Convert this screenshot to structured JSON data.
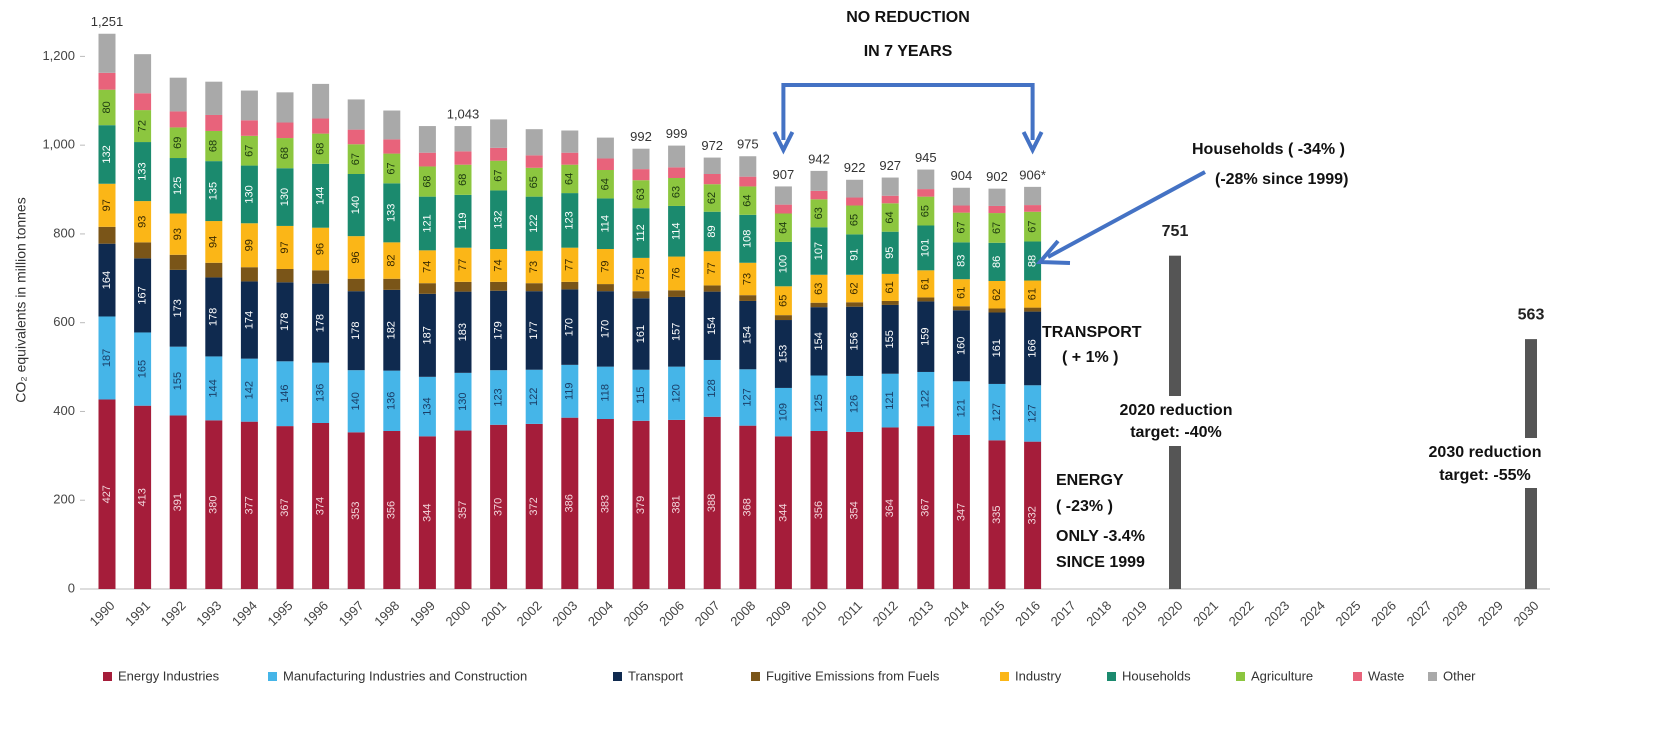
{
  "chart_data": {
    "type": "stacked_bar",
    "y_label": "CO₂ equivalents in million tonnes",
    "categories": [
      "1990",
      "1991",
      "1992",
      "1993",
      "1994",
      "1995",
      "1996",
      "1997",
      "1998",
      "1999",
      "2000",
      "2001",
      "2002",
      "2003",
      "2004",
      "2005",
      "2006",
      "2007",
      "2008",
      "2009",
      "2010",
      "2011",
      "2012",
      "2013",
      "2014",
      "2015",
      "2016",
      "2017",
      "2018",
      "2019",
      "2020",
      "2021",
      "2022",
      "2023",
      "2024",
      "2025",
      "2026",
      "2027",
      "2028",
      "2029",
      "2030"
    ],
    "ylim": [
      0,
      1300
    ],
    "yticks": [
      0,
      200,
      400,
      600,
      800,
      {
        "value": 1000,
        "label": "1,000"
      },
      {
        "value": 1200,
        "label": "1,200"
      }
    ],
    "series": [
      {
        "name": "Energy Industries",
        "color": "#a51d3a",
        "label_color": "#f2d6dc",
        "show_labels": true,
        "values": [
          427,
          413,
          391,
          380,
          377,
          367,
          374,
          353,
          356,
          344,
          357,
          370,
          372,
          386,
          383,
          379,
          381,
          388,
          368,
          344,
          356,
          354,
          364,
          367,
          347,
          335,
          332,
          null,
          null,
          null,
          null,
          null,
          null,
          null,
          null,
          null,
          null,
          null,
          null,
          null,
          null
        ]
      },
      {
        "name": "Manufacturing Industries and Construction",
        "color": "#45b5e8",
        "label_color": "#1a3d66",
        "show_labels": true,
        "values": [
          187,
          165,
          155,
          144,
          142,
          146,
          136,
          140,
          136,
          134,
          130,
          123,
          122,
          119,
          118,
          115,
          120,
          128,
          127,
          109,
          125,
          126,
          121,
          122,
          121,
          127,
          127,
          null,
          null,
          null,
          null,
          null,
          null,
          null,
          null,
          null,
          null,
          null,
          null,
          null,
          null
        ]
      },
      {
        "name": "Transport",
        "color": "#0f2a4f",
        "label_color": "#ffffff",
        "show_labels": true,
        "values": [
          164,
          167,
          173,
          178,
          174,
          178,
          178,
          178,
          182,
          187,
          183,
          179,
          177,
          170,
          170,
          161,
          157,
          154,
          154,
          153,
          154,
          156,
          155,
          159,
          160,
          161,
          166,
          null,
          null,
          null,
          null,
          null,
          null,
          null,
          null,
          null,
          null,
          null,
          null,
          null,
          null
        ]
      },
      {
        "name": "Fugitive Emissions from Fuels",
        "color": "#7a5518",
        "label_color": "#ffffff",
        "show_labels": false,
        "values": [
          38,
          36,
          34,
          33,
          32,
          30,
          30,
          28,
          25,
          24,
          22,
          20,
          18,
          17,
          16,
          16,
          15,
          14,
          13,
          11,
          10,
          10,
          9,
          9,
          9,
          9,
          9,
          null,
          null,
          null,
          null,
          null,
          null,
          null,
          null,
          null,
          null,
          null,
          null,
          null,
          null
        ]
      },
      {
        "name": "Industry",
        "color": "#fbb617",
        "label_color": "#3a2a00",
        "show_labels": true,
        "values": [
          97,
          93,
          93,
          94,
          99,
          97,
          96,
          96,
          82,
          74,
          77,
          74,
          73,
          77,
          79,
          75,
          76,
          77,
          73,
          65,
          63,
          62,
          61,
          61,
          61,
          62,
          61,
          null,
          null,
          null,
          null,
          null,
          null,
          null,
          null,
          null,
          null,
          null,
          null,
          null,
          null
        ]
      },
      {
        "name": "Households",
        "color": "#1b8a6e",
        "label_color": "#ffffff",
        "show_labels": true,
        "values": [
          132,
          133,
          125,
          135,
          130,
          130,
          144,
          140,
          133,
          121,
          119,
          132,
          122,
          123,
          114,
          112,
          114,
          89,
          108,
          100,
          107,
          91,
          95,
          101,
          83,
          86,
          88,
          null,
          null,
          null,
          null,
          null,
          null,
          null,
          null,
          null,
          null,
          null,
          null,
          null,
          null
        ]
      },
      {
        "name": "Agriculture",
        "color": "#8cc63f",
        "label_color": "#1e3a10",
        "show_labels": true,
        "values": [
          80,
          72,
          69,
          68,
          67,
          68,
          68,
          67,
          67,
          68,
          68,
          67,
          65,
          64,
          64,
          63,
          63,
          62,
          64,
          64,
          63,
          65,
          64,
          65,
          67,
          67,
          67,
          null,
          null,
          null,
          null,
          null,
          null,
          null,
          null,
          null,
          null,
          null,
          null,
          null,
          null
        ]
      },
      {
        "name": "Waste",
        "color": "#e8637b",
        "label_color": "#ffffff",
        "show_labels": false,
        "values": [
          38,
          38,
          36,
          36,
          35,
          35,
          34,
          33,
          32,
          31,
          30,
          29,
          28,
          27,
          26,
          25,
          24,
          23,
          22,
          20,
          19,
          18,
          17,
          17,
          16,
          16,
          15,
          null,
          null,
          null,
          null,
          null,
          null,
          null,
          null,
          null,
          null,
          null,
          null,
          null,
          null
        ]
      },
      {
        "name": "Other",
        "color": "#a9a9a9",
        "label_color": "#ffffff",
        "show_labels": false,
        "values": [
          88,
          88,
          76,
          75,
          67,
          68,
          78,
          68,
          65,
          60,
          57,
          64,
          59,
          50,
          47,
          46,
          49,
          37,
          46,
          41,
          45,
          40,
          41,
          44,
          40,
          39,
          41,
          null,
          null,
          null,
          null,
          null,
          null,
          null,
          null,
          null,
          null,
          null,
          null,
          null,
          null
        ]
      }
    ],
    "totals": {
      "values": [
        1251,
        null,
        null,
        null,
        null,
        null,
        null,
        null,
        null,
        null,
        1043,
        null,
        null,
        null,
        null,
        992,
        999,
        972,
        975,
        907,
        942,
        922,
        927,
        945,
        904,
        902,
        906,
        null,
        null,
        null,
        null,
        null,
        null,
        null,
        null,
        null,
        null,
        null,
        null,
        null,
        null
      ],
      "value_labels": [
        "1,251",
        null,
        null,
        null,
        null,
        null,
        null,
        null,
        null,
        null,
        "1,043",
        null,
        null,
        null,
        null,
        "992",
        "999",
        "972",
        "975",
        "907",
        "942",
        "922",
        "927",
        "945",
        "904",
        "902",
        "906*",
        null,
        null,
        null,
        null,
        null,
        null,
        null,
        null,
        null,
        null,
        null,
        null,
        null,
        null
      ]
    },
    "targets": {
      "color": "#555555",
      "values": [
        null,
        null,
        null,
        null,
        null,
        null,
        null,
        null,
        null,
        null,
        null,
        null,
        null,
        null,
        null,
        null,
        null,
        null,
        null,
        null,
        null,
        null,
        null,
        null,
        null,
        null,
        null,
        null,
        null,
        null,
        751,
        null,
        null,
        null,
        null,
        null,
        null,
        null,
        null,
        null,
        563
      ]
    },
    "annotations": [
      {
        "text": "NO REDUCTION"
      },
      {
        "text": "IN 7 YEARS"
      },
      {
        "text": "Households  ( -34% )"
      },
      {
        "text": "(-28% since 1999)"
      },
      {
        "text": "TRANSPORT"
      },
      {
        "text": "( + 1% )"
      },
      {
        "text": "2020 reduction"
      },
      {
        "text": "target: -40%"
      },
      {
        "text": "ENERGY"
      },
      {
        "text": "( -23% )"
      },
      {
        "text": "ONLY -3.4%"
      },
      {
        "text": "SINCE 1999"
      },
      {
        "text": "2030 reduction"
      },
      {
        "text": "target: -55%"
      }
    ]
  }
}
